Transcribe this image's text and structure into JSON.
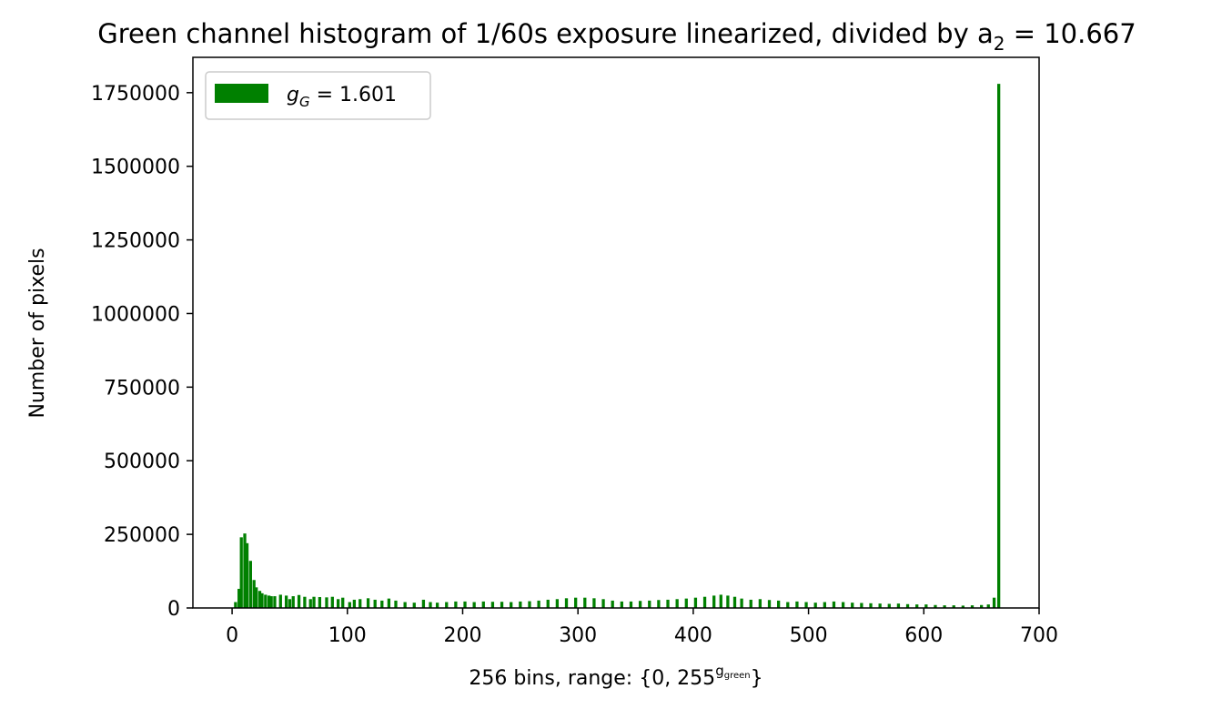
{
  "chart_data": {
    "type": "bar",
    "title": "Green channel histogram of 1/60s exposure linearized, divided by a",
    "title_subscript": "2",
    "title_suffix": " = 10.667",
    "xlabel": "256 bins, range: {0, 255",
    "xlabel_superscript": "g",
    "xlabel_superscript_sub": "green",
    "xlabel_suffix": "}",
    "ylabel": "Number of pixels",
    "xlim": [
      -34,
      700
    ],
    "ylim": [
      0,
      1870000
    ],
    "xticks": [
      0,
      100,
      200,
      300,
      400,
      500,
      600,
      700
    ],
    "yticks": [
      0,
      250000,
      500000,
      750000,
      1000000,
      1250000,
      1500000,
      1750000
    ],
    "legend": {
      "placement": "upper-left",
      "label_symbol": "g",
      "label_subscript": "G",
      "label_value": " = 1.601"
    },
    "color": "#008000",
    "bars": [
      {
        "x": 3,
        "y": 20000
      },
      {
        "x": 6,
        "y": 65000
      },
      {
        "x": 8,
        "y": 240000
      },
      {
        "x": 11,
        "y": 253000
      },
      {
        "x": 13,
        "y": 220000
      },
      {
        "x": 16,
        "y": 160000
      },
      {
        "x": 19,
        "y": 95000
      },
      {
        "x": 21,
        "y": 70000
      },
      {
        "x": 24,
        "y": 58000
      },
      {
        "x": 26,
        "y": 50000
      },
      {
        "x": 29,
        "y": 45000
      },
      {
        "x": 32,
        "y": 42000
      },
      {
        "x": 34,
        "y": 40000
      },
      {
        "x": 37,
        "y": 40000
      },
      {
        "x": 42,
        "y": 45000
      },
      {
        "x": 47,
        "y": 42000
      },
      {
        "x": 50,
        "y": 30000
      },
      {
        "x": 53,
        "y": 40000
      },
      {
        "x": 58,
        "y": 44000
      },
      {
        "x": 63,
        "y": 38000
      },
      {
        "x": 68,
        "y": 30000
      },
      {
        "x": 71,
        "y": 38000
      },
      {
        "x": 76,
        "y": 37000
      },
      {
        "x": 82,
        "y": 36000
      },
      {
        "x": 87,
        "y": 38000
      },
      {
        "x": 92,
        "y": 30000
      },
      {
        "x": 96,
        "y": 35000
      },
      {
        "x": 102,
        "y": 20000
      },
      {
        "x": 106,
        "y": 28000
      },
      {
        "x": 111,
        "y": 30000
      },
      {
        "x": 118,
        "y": 33000
      },
      {
        "x": 124,
        "y": 28000
      },
      {
        "x": 130,
        "y": 25000
      },
      {
        "x": 136,
        "y": 32000
      },
      {
        "x": 142,
        "y": 25000
      },
      {
        "x": 150,
        "y": 20000
      },
      {
        "x": 158,
        "y": 18000
      },
      {
        "x": 166,
        "y": 28000
      },
      {
        "x": 172,
        "y": 20000
      },
      {
        "x": 178,
        "y": 18000
      },
      {
        "x": 186,
        "y": 20000
      },
      {
        "x": 194,
        "y": 22000
      },
      {
        "x": 202,
        "y": 22000
      },
      {
        "x": 210,
        "y": 20000
      },
      {
        "x": 218,
        "y": 22000
      },
      {
        "x": 226,
        "y": 21000
      },
      {
        "x": 234,
        "y": 21000
      },
      {
        "x": 242,
        "y": 20000
      },
      {
        "x": 250,
        "y": 22000
      },
      {
        "x": 258,
        "y": 23000
      },
      {
        "x": 266,
        "y": 25000
      },
      {
        "x": 274,
        "y": 28000
      },
      {
        "x": 282,
        "y": 30000
      },
      {
        "x": 290,
        "y": 33000
      },
      {
        "x": 298,
        "y": 35000
      },
      {
        "x": 306,
        "y": 35000
      },
      {
        "x": 314,
        "y": 33000
      },
      {
        "x": 322,
        "y": 30000
      },
      {
        "x": 330,
        "y": 25000
      },
      {
        "x": 338,
        "y": 22000
      },
      {
        "x": 346,
        "y": 22000
      },
      {
        "x": 354,
        "y": 24000
      },
      {
        "x": 362,
        "y": 25000
      },
      {
        "x": 370,
        "y": 27000
      },
      {
        "x": 378,
        "y": 28000
      },
      {
        "x": 386,
        "y": 30000
      },
      {
        "x": 394,
        "y": 32000
      },
      {
        "x": 402,
        "y": 35000
      },
      {
        "x": 410,
        "y": 38000
      },
      {
        "x": 418,
        "y": 42000
      },
      {
        "x": 424,
        "y": 45000
      },
      {
        "x": 430,
        "y": 42000
      },
      {
        "x": 436,
        "y": 38000
      },
      {
        "x": 442,
        "y": 32000
      },
      {
        "x": 450,
        "y": 28000
      },
      {
        "x": 458,
        "y": 30000
      },
      {
        "x": 466,
        "y": 27000
      },
      {
        "x": 474,
        "y": 25000
      },
      {
        "x": 482,
        "y": 20000
      },
      {
        "x": 490,
        "y": 22000
      },
      {
        "x": 498,
        "y": 20000
      },
      {
        "x": 506,
        "y": 18000
      },
      {
        "x": 514,
        "y": 20000
      },
      {
        "x": 522,
        "y": 22000
      },
      {
        "x": 530,
        "y": 20000
      },
      {
        "x": 538,
        "y": 18000
      },
      {
        "x": 546,
        "y": 17000
      },
      {
        "x": 554,
        "y": 16000
      },
      {
        "x": 562,
        "y": 15000
      },
      {
        "x": 570,
        "y": 14000
      },
      {
        "x": 578,
        "y": 15000
      },
      {
        "x": 586,
        "y": 13000
      },
      {
        "x": 594,
        "y": 12000
      },
      {
        "x": 602,
        "y": 12000
      },
      {
        "x": 610,
        "y": 10000
      },
      {
        "x": 618,
        "y": 9000
      },
      {
        "x": 626,
        "y": 9000
      },
      {
        "x": 634,
        "y": 8000
      },
      {
        "x": 642,
        "y": 9000
      },
      {
        "x": 650,
        "y": 10000
      },
      {
        "x": 656,
        "y": 12000
      },
      {
        "x": 661,
        "y": 35000
      },
      {
        "x": 665,
        "y": 1780000
      }
    ]
  }
}
